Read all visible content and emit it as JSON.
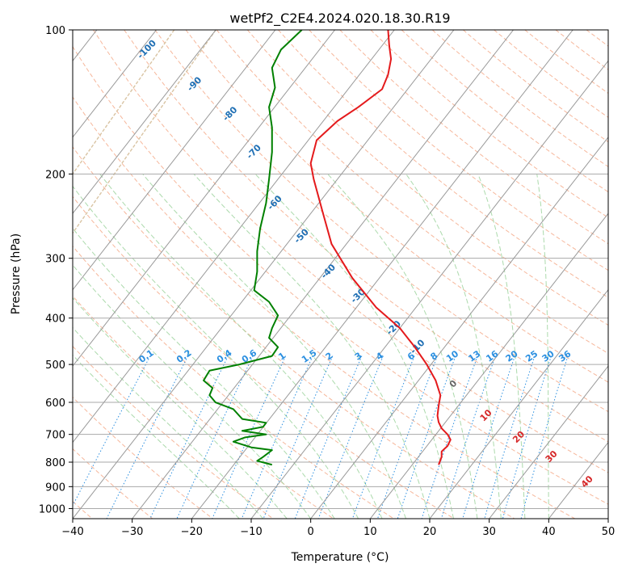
{
  "chart_data": {
    "type": "line",
    "title": "wetPf2_C2E4.2024.020.18.30.R19",
    "xlabel": "Temperature (°C)",
    "ylabel": "Pressure (hPa)",
    "xlim": [
      -40,
      50
    ],
    "ylim": [
      1050,
      100
    ],
    "y_scale": "log",
    "grid": true,
    "x_ticks": [
      -40,
      -30,
      -20,
      -10,
      0,
      10,
      20,
      30,
      40,
      50
    ],
    "y_ticks": [
      100,
      200,
      300,
      400,
      500,
      600,
      700,
      800,
      900,
      1000
    ],
    "skew_isotherms": true,
    "series": [
      {
        "color": "#e41a1c",
        "points": [
          [
            21.5,
            810
          ],
          [
            22.0,
            780
          ],
          [
            22.0,
            760
          ],
          [
            23.0,
            740
          ],
          [
            23.5,
            718
          ],
          [
            23.0,
            700
          ],
          [
            22.0,
            680
          ],
          [
            21.5,
            660
          ],
          [
            21.3,
            640
          ],
          [
            21.5,
            610
          ],
          [
            21.8,
            580
          ],
          [
            21.0,
            540
          ],
          [
            19.5,
            500
          ],
          [
            17.5,
            460
          ],
          [
            15.0,
            420
          ],
          [
            11.0,
            380
          ],
          [
            7.0,
            330
          ],
          [
            3.5,
            280
          ],
          [
            2.0,
            240
          ],
          [
            0.5,
            205
          ],
          [
            0.0,
            190
          ],
          [
            1.0,
            170
          ],
          [
            4.5,
            155
          ],
          [
            8.0,
            145
          ],
          [
            12.0,
            133
          ],
          [
            13.0,
            124
          ],
          [
            13.5,
            115
          ],
          [
            13.2,
            108
          ],
          [
            13.0,
            100
          ]
        ]
      },
      {
        "color": "#008000",
        "points": [
          [
            -6.5,
            810
          ],
          [
            -9.0,
            795
          ],
          [
            -8.0,
            780
          ],
          [
            -6.5,
            755
          ],
          [
            -10.0,
            745
          ],
          [
            -13.0,
            725
          ],
          [
            -11.0,
            710
          ],
          [
            -7.5,
            700
          ],
          [
            -11.5,
            688
          ],
          [
            -8.0,
            675
          ],
          [
            -7.5,
            662
          ],
          [
            -11.5,
            650
          ],
          [
            -12.0,
            640
          ],
          [
            -13.0,
            620
          ],
          [
            -16.0,
            600
          ],
          [
            -17.0,
            580
          ],
          [
            -16.5,
            560
          ],
          [
            -18.0,
            540
          ],
          [
            -17.0,
            515
          ],
          [
            -12.0,
            500
          ],
          [
            -6.5,
            480
          ],
          [
            -5.5,
            460
          ],
          [
            -7.0,
            440
          ],
          [
            -6.5,
            420
          ],
          [
            -5.5,
            395
          ],
          [
            -7.0,
            370
          ],
          [
            -9.5,
            350
          ],
          [
            -9.0,
            320
          ],
          [
            -9.0,
            290
          ],
          [
            -8.5,
            260
          ],
          [
            -7.5,
            230
          ],
          [
            -7.0,
            205
          ],
          [
            -6.5,
            180
          ],
          [
            -6.5,
            160
          ],
          [
            -7.0,
            145
          ],
          [
            -6.0,
            132
          ],
          [
            -6.5,
            120
          ],
          [
            -5.0,
            110
          ],
          [
            -1.5,
            100
          ]
        ]
      }
    ],
    "dry_adiabat_labels": [
      "-100",
      "-90",
      "-80",
      "-70",
      "-60",
      "-50",
      "-40",
      "-30",
      "-20",
      "-10",
      "0",
      "10",
      "20",
      "30",
      "40"
    ],
    "mixing_ratio_labels": [
      "0.1",
      "0.2",
      "0.4",
      "0.6",
      "1",
      "1.5",
      "2",
      "3",
      "4",
      "6",
      "8",
      "10",
      "13",
      "16",
      "20",
      "25",
      "30",
      "36"
    ],
    "colors": {
      "temperature": "#e41a1c",
      "dewpoint": "#008000",
      "isotherm": "#999999",
      "isobar": "#aaaaaa",
      "dry_adiabat": "#f4a582",
      "moist_adiabat": "#9ed39e",
      "mixing_ratio": "#2b8fe0",
      "wet_bulb_zero": "#d9c4a3",
      "label_blue": "#1f6fb4",
      "label_red": "#d62728",
      "label_gray": "#666666"
    }
  }
}
